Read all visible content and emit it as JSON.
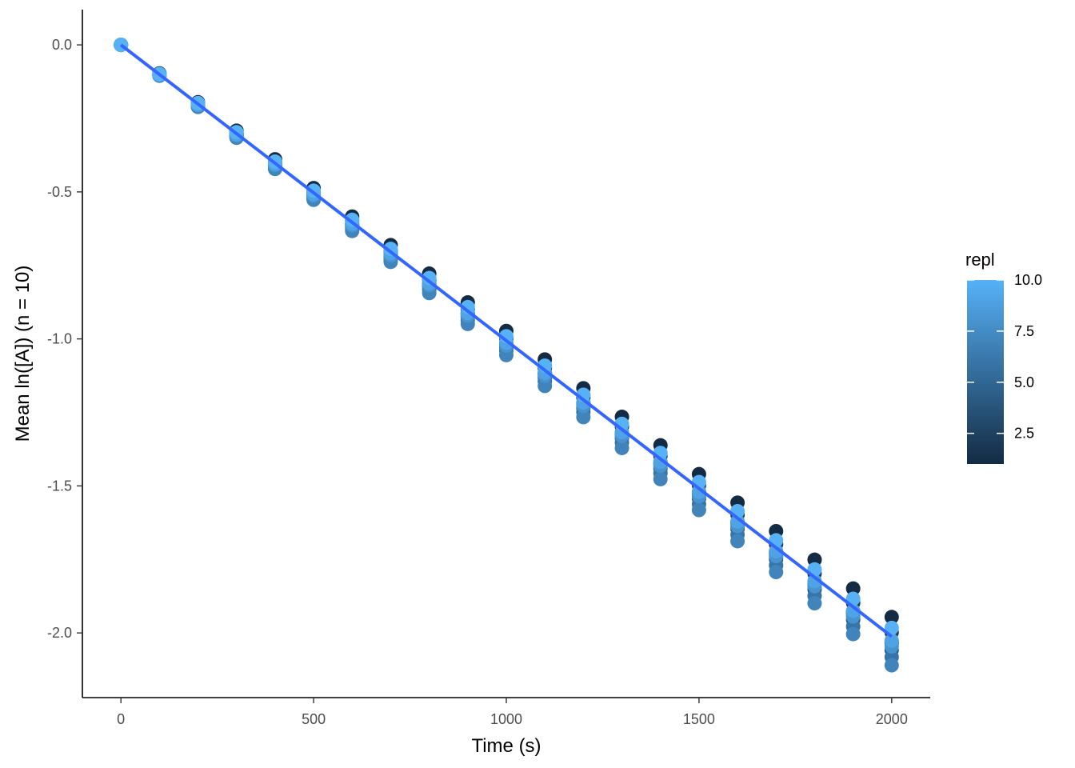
{
  "chart_data": {
    "type": "scatter",
    "xlabel": "Time (s)",
    "ylabel": "Mean ln([A]) (n = 10)",
    "xlim": [
      -100,
      2100
    ],
    "ylim": [
      -2.22,
      0.12
    ],
    "x_ticks": [
      0,
      500,
      1000,
      1500,
      2000
    ],
    "x_tick_labels": [
      "0",
      "500",
      "1000",
      "1500",
      "2000"
    ],
    "y_ticks": [
      0.0,
      -0.5,
      -1.0,
      -1.5,
      -2.0
    ],
    "y_tick_labels": [
      "0.0",
      "-0.5",
      "-1.0",
      "-1.5",
      "-2.0"
    ],
    "grid": false,
    "x": [
      0,
      100,
      200,
      300,
      400,
      500,
      600,
      700,
      800,
      900,
      1000,
      1100,
      1200,
      1300,
      1400,
      1500,
      1600,
      1700,
      1800,
      1900,
      2000
    ],
    "color_variable": "repl",
    "repl_levels": [
      1,
      2,
      3,
      4,
      5,
      6,
      7,
      8,
      9,
      10
    ],
    "series": [
      {
        "repl": 1,
        "values": [
          0,
          -0.097,
          -0.195,
          -0.292,
          -0.389,
          -0.487,
          -0.584,
          -0.681,
          -0.778,
          -0.876,
          -0.973,
          -1.07,
          -1.168,
          -1.265,
          -1.362,
          -1.46,
          -1.557,
          -1.654,
          -1.751,
          -1.849,
          -1.946
        ]
      },
      {
        "repl": 2,
        "values": [
          0,
          -0.1,
          -0.2,
          -0.3,
          -0.4,
          -0.499,
          -0.599,
          -0.699,
          -0.799,
          -0.899,
          -0.999,
          -1.099,
          -1.199,
          -1.298,
          -1.398,
          -1.498,
          -1.598,
          -1.698,
          -1.798,
          -1.898,
          -1.998
        ]
      },
      {
        "repl": 3,
        "values": [
          0,
          -0.101,
          -0.203,
          -0.304,
          -0.406,
          -0.507,
          -0.609,
          -0.71,
          -0.812,
          -0.913,
          -1.015,
          -1.116,
          -1.218,
          -1.319,
          -1.421,
          -1.522,
          -1.624,
          -1.725,
          -1.827,
          -1.928,
          -2.03
        ]
      },
      {
        "repl": 4,
        "values": [
          0,
          -0.103,
          -0.206,
          -0.309,
          -0.412,
          -0.514,
          -0.617,
          -0.72,
          -0.823,
          -0.926,
          -1.029,
          -1.132,
          -1.235,
          -1.338,
          -1.441,
          -1.543,
          -1.646,
          -1.749,
          -1.852,
          -1.955,
          -2.058
        ]
      },
      {
        "repl": 5,
        "values": [
          0,
          -0.102,
          -0.204,
          -0.305,
          -0.407,
          -0.509,
          -0.611,
          -0.713,
          -0.815,
          -0.916,
          -1.018,
          -1.12,
          -1.222,
          -1.324,
          -1.426,
          -1.527,
          -1.629,
          -1.731,
          -1.833,
          -1.935,
          -2.036
        ]
      },
      {
        "repl": 6,
        "values": [
          0,
          -0.104,
          -0.208,
          -0.312,
          -0.416,
          -0.521,
          -0.625,
          -0.729,
          -0.833,
          -0.937,
          -1.041,
          -1.145,
          -1.249,
          -1.353,
          -1.457,
          -1.562,
          -1.666,
          -1.77,
          -1.874,
          -1.978,
          -2.082
        ]
      },
      {
        "repl": 7,
        "values": [
          0,
          -0.105,
          -0.211,
          -0.316,
          -0.422,
          -0.527,
          -0.633,
          -0.738,
          -0.844,
          -0.949,
          -1.055,
          -1.16,
          -1.266,
          -1.371,
          -1.477,
          -1.582,
          -1.688,
          -1.793,
          -1.899,
          -2.004,
          -2.11
        ]
      },
      {
        "repl": 8,
        "values": [
          0,
          -0.102,
          -0.205,
          -0.307,
          -0.409,
          -0.512,
          -0.614,
          -0.716,
          -0.818,
          -0.921,
          -1.023,
          -1.125,
          -1.228,
          -1.33,
          -1.432,
          -1.535,
          -1.637,
          -1.739,
          -1.841,
          -1.944,
          -2.046
        ]
      },
      {
        "repl": 9,
        "values": [
          0,
          -0.101,
          -0.203,
          -0.304,
          -0.405,
          -0.507,
          -0.608,
          -0.709,
          -0.811,
          -0.912,
          -1.013,
          -1.115,
          -1.216,
          -1.317,
          -1.418,
          -1.52,
          -1.621,
          -1.722,
          -1.824,
          -1.925,
          -2.026
        ]
      },
      {
        "repl": 10,
        "values": [
          0,
          -0.099,
          -0.198,
          -0.297,
          -0.397,
          -0.496,
          -0.595,
          -0.694,
          -0.793,
          -0.892,
          -0.991,
          -1.091,
          -1.19,
          -1.289,
          -1.388,
          -1.487,
          -1.586,
          -1.685,
          -1.784,
          -1.884,
          -1.983
        ]
      }
    ],
    "fit_line": {
      "x": [
        0,
        2000
      ],
      "y": [
        0,
        -2.012
      ],
      "color": "#3366ff"
    },
    "colors": {
      "low": "#132b43",
      "high": "#56b1f7"
    },
    "legend": {
      "title": "repl",
      "placement": "right",
      "range": [
        1,
        10
      ],
      "breaks": [
        2.5,
        5.0,
        7.5,
        10.0
      ],
      "labels": [
        "2.5",
        "5.0",
        "7.5",
        "10.0"
      ]
    }
  }
}
